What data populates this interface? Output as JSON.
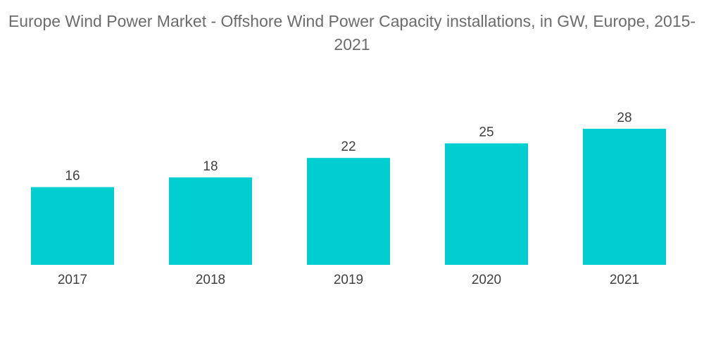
{
  "chart_data": {
    "type": "bar",
    "title": "Europe Wind Power Market - Offshore Wind Power Capacity installations, in GW, Europe, 2015-2021",
    "categories": [
      "2017",
      "2018",
      "2019",
      "2020",
      "2021"
    ],
    "values": [
      16,
      18,
      22,
      25,
      28
    ],
    "value_labels": [
      "16",
      "18",
      "22",
      "25",
      "28"
    ],
    "xlabel": "",
    "ylabel": "",
    "ylim": [
      0,
      28
    ],
    "grid": false,
    "legend": "none",
    "bar_color": "#00ced1"
  }
}
